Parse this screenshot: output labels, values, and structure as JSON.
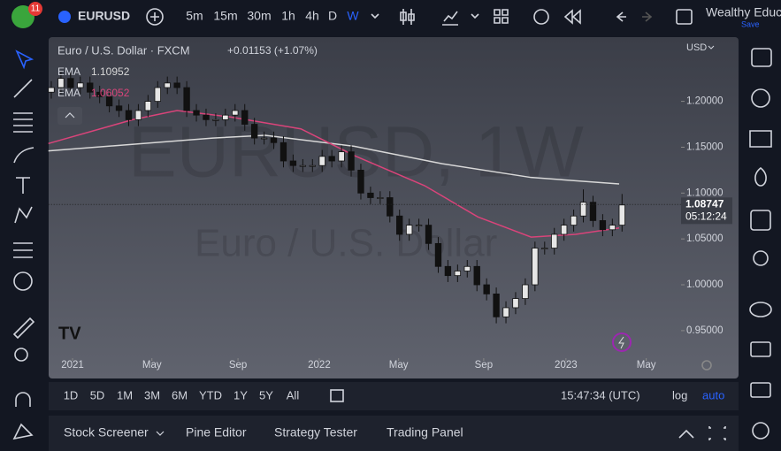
{
  "toolbar": {
    "badge": "11",
    "symbol": "EURUSD",
    "timeframes": [
      "5m",
      "15m",
      "30m",
      "1h",
      "4h",
      "D",
      "W"
    ],
    "account": "Wealthy Educ",
    "save": "Save"
  },
  "legend": {
    "name": "Euro / U.S. Dollar · FXCM",
    "change": "+0.01153 (+1.07%)",
    "currency": "USD"
  },
  "watermark": {
    "symbol": "EURUSD, 1W",
    "name": "Euro / U.S. Dollar"
  },
  "chart_data": {
    "type": "candlestick",
    "candles": [
      [
        1.21,
        1.222,
        1.203,
        1.215
      ],
      [
        1.215,
        1.232,
        1.208,
        1.225
      ],
      [
        1.225,
        1.232,
        1.208,
        1.215
      ],
      [
        1.215,
        1.227,
        1.208,
        1.22
      ],
      [
        1.22,
        1.227,
        1.203,
        1.21
      ],
      [
        1.21,
        1.217,
        1.198,
        1.205
      ],
      [
        1.205,
        1.212,
        1.188,
        1.195
      ],
      [
        1.195,
        1.202,
        1.183,
        1.19
      ],
      [
        1.19,
        1.197,
        1.173,
        1.18
      ],
      [
        1.18,
        1.197,
        1.173,
        1.19
      ],
      [
        1.19,
        1.207,
        1.183,
        1.2
      ],
      [
        1.2,
        1.222,
        1.193,
        1.215
      ],
      [
        1.215,
        1.227,
        1.208,
        1.22
      ],
      [
        1.22,
        1.227,
        1.208,
        1.215
      ],
      [
        1.215,
        1.222,
        1.183,
        1.19
      ],
      [
        1.19,
        1.197,
        1.178,
        1.185
      ],
      [
        1.185,
        1.192,
        1.173,
        1.18
      ],
      [
        1.18,
        1.187,
        1.173,
        1.18
      ],
      [
        1.18,
        1.192,
        1.173,
        1.185
      ],
      [
        1.185,
        1.197,
        1.178,
        1.19
      ],
      [
        1.19,
        1.197,
        1.168,
        1.175
      ],
      [
        1.175,
        1.182,
        1.153,
        1.16
      ],
      [
        1.16,
        1.167,
        1.153,
        1.16
      ],
      [
        1.16,
        1.167,
        1.148,
        1.155
      ],
      [
        1.155,
        1.162,
        1.128,
        1.135
      ],
      [
        1.135,
        1.142,
        1.123,
        1.13
      ],
      [
        1.13,
        1.137,
        1.123,
        1.13
      ],
      [
        1.13,
        1.137,
        1.123,
        1.13
      ],
      [
        1.13,
        1.147,
        1.123,
        1.14
      ],
      [
        1.14,
        1.147,
        1.128,
        1.135
      ],
      [
        1.135,
        1.152,
        1.128,
        1.145
      ],
      [
        1.145,
        1.152,
        1.118,
        1.125
      ],
      [
        1.125,
        1.132,
        1.093,
        1.1
      ],
      [
        1.1,
        1.107,
        1.088,
        1.095
      ],
      [
        1.095,
        1.102,
        1.088,
        1.095
      ],
      [
        1.095,
        1.102,
        1.068,
        1.075
      ],
      [
        1.075,
        1.082,
        1.048,
        1.055
      ],
      [
        1.055,
        1.072,
        1.048,
        1.065
      ],
      [
        1.065,
        1.072,
        1.058,
        1.065
      ],
      [
        1.065,
        1.072,
        1.038,
        1.045
      ],
      [
        1.045,
        1.052,
        1.013,
        1.02
      ],
      [
        1.02,
        1.027,
        1.003,
        1.01
      ],
      [
        1.01,
        1.022,
        1.003,
        1.015
      ],
      [
        1.015,
        1.027,
        1.008,
        1.02
      ],
      [
        1.02,
        1.027,
        0.993,
        1.0
      ],
      [
        1.0,
        1.007,
        0.983,
        0.99
      ],
      [
        0.99,
        0.997,
        0.958,
        0.965
      ],
      [
        0.965,
        0.982,
        0.958,
        0.975
      ],
      [
        0.975,
        0.992,
        0.968,
        0.985
      ],
      [
        0.985,
        1.007,
        0.978,
        1.0
      ],
      [
        1.0,
        1.047,
        0.993,
        1.04
      ],
      [
        1.04,
        1.047,
        1.033,
        1.04
      ],
      [
        1.04,
        1.062,
        1.033,
        1.055
      ],
      [
        1.055,
        1.072,
        1.048,
        1.065
      ],
      [
        1.065,
        1.082,
        1.058,
        1.075
      ],
      [
        1.075,
        1.104,
        1.068,
        1.09
      ],
      [
        1.09,
        1.097,
        1.063,
        1.07
      ],
      [
        1.07,
        1.077,
        1.053,
        1.06
      ],
      [
        1.06,
        1.072,
        1.053,
        1.065
      ],
      [
        1.065,
        1.099,
        1.058,
        1.087
      ]
    ],
    "up_color": "#e6e6e6",
    "down_color": "#111111",
    "series": [
      {
        "name": "EMA",
        "color": "#d8d8d8",
        "last": 1.10952,
        "x": [
          -0.3,
          16.7,
          22.1,
          31.3,
          40.4,
          49.6,
          58.7
        ],
        "values": [
          1.146,
          1.16,
          1.163,
          1.151,
          1.132,
          1.117,
          1.11
        ]
      },
      {
        "name": "EMA",
        "color": "#d9447a",
        "last": 1.06052,
        "x": [
          -0.3,
          8.4,
          13.0,
          18.5,
          25.8,
          31.3,
          38.6,
          44.1,
          49.6,
          54.2,
          58.7
        ],
        "values": [
          1.154,
          1.18,
          1.19,
          1.183,
          1.17,
          1.141,
          1.108,
          1.074,
          1.052,
          1.055,
          1.062
        ]
      }
    ],
    "price": 1.08747,
    "countdown": "05:12:24",
    "xlim": [
      -0.3,
      65.1
    ],
    "xticks": [
      {
        "value": 2.2,
        "label": "2021"
      },
      {
        "value": 10.4,
        "label": "May"
      },
      {
        "value": 19.3,
        "label": "Sep"
      },
      {
        "value": 27.7,
        "label": "2022"
      },
      {
        "value": 35.9,
        "label": "May"
      },
      {
        "value": 44.7,
        "label": "Sep"
      },
      {
        "value": 53.2,
        "label": "2023"
      },
      {
        "value": 61.5,
        "label": "May"
      }
    ],
    "ylim": [
      0.92,
      1.27
    ],
    "yticks": [
      {
        "value": 0.95,
        "label": "0.95000"
      },
      {
        "value": 1.0,
        "label": "1.00000"
      },
      {
        "value": 1.05,
        "label": "1.05000"
      },
      {
        "value": 1.1,
        "label": "1.10000"
      },
      {
        "value": 1.15,
        "label": "1.15000"
      },
      {
        "value": 1.2,
        "label": "1.20000"
      }
    ]
  },
  "range_bar": {
    "ranges": [
      "1D",
      "5D",
      "1M",
      "3M",
      "6M",
      "YTD",
      "1Y",
      "5Y",
      "All"
    ],
    "time": "15:47:34 (UTC)",
    "log": "log",
    "auto": "auto"
  },
  "bottom_panel": {
    "tabs": [
      "Stock Screener",
      "Pine Editor",
      "Strategy Tester",
      "Trading Panel"
    ]
  }
}
